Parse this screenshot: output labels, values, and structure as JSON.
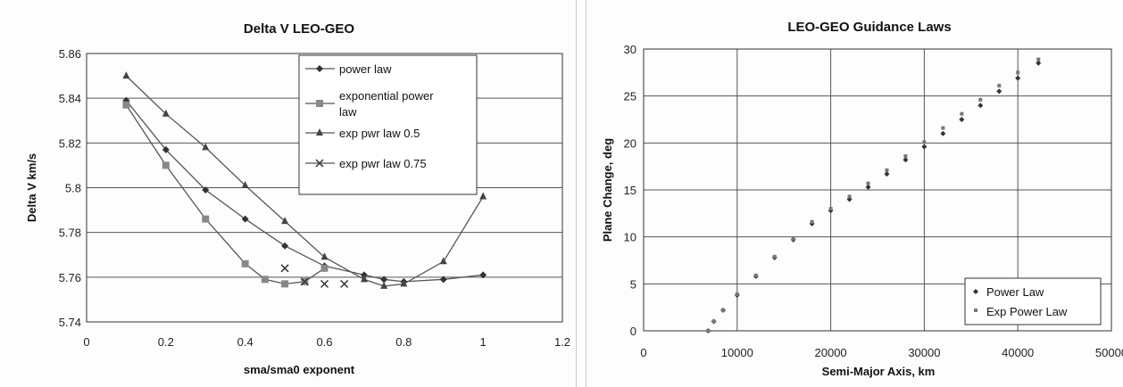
{
  "chart_data": [
    {
      "type": "line",
      "title": "Delta V LEO-GEO",
      "xlabel": "sma/sma0 exponent",
      "ylabel": "Delta V km/s",
      "xlim": [
        0,
        1.2
      ],
      "ylim": [
        5.74,
        5.86
      ],
      "xticks": [
        "0",
        "0.2",
        "0.4",
        "0.6",
        "0.8",
        "1",
        "1.2"
      ],
      "yticks": [
        "5.74",
        "5.76",
        "5.78",
        "5.8",
        "5.82",
        "5.84",
        "5.86"
      ],
      "grid": "horizontal",
      "legend": "top-center",
      "series": [
        {
          "name": "power law",
          "marker": "diamond",
          "x": [
            0.1,
            0.2,
            0.3,
            0.4,
            0.5,
            0.6,
            0.7,
            0.75,
            0.8,
            0.9,
            1.0
          ],
          "y": [
            5.839,
            5.817,
            5.799,
            5.786,
            5.774,
            5.765,
            5.761,
            5.759,
            5.758,
            5.759,
            5.761
          ]
        },
        {
          "name": "exponential power law",
          "marker": "square",
          "x": [
            0.1,
            0.2,
            0.3,
            0.4,
            0.45,
            0.5,
            0.55,
            0.6
          ],
          "y": [
            5.837,
            5.81,
            5.786,
            5.766,
            5.759,
            5.757,
            5.758,
            5.764
          ]
        },
        {
          "name": "exp pwr law 0.5",
          "marker": "triangle",
          "x": [
            0.1,
            0.2,
            0.3,
            0.4,
            0.5,
            0.6,
            0.7,
            0.75,
            0.8,
            0.9,
            1.0
          ],
          "y": [
            5.85,
            5.833,
            5.818,
            5.801,
            5.785,
            5.769,
            5.759,
            5.756,
            5.757,
            5.767,
            5.796
          ]
        },
        {
          "name": "exp pwr law 0.75",
          "marker": "x",
          "x": [
            0.5,
            0.55,
            0.6,
            0.65
          ],
          "y": [
            5.764,
            5.758,
            5.757,
            5.757
          ]
        }
      ]
    },
    {
      "type": "scatter",
      "title": "LEO-GEO Guidance Laws",
      "xlabel": "Semi-Major Axis, km",
      "ylabel": "Plane Change, deg",
      "xlim": [
        0,
        50000
      ],
      "ylim": [
        0,
        30
      ],
      "xticks": [
        "0",
        "10000",
        "20000",
        "30000",
        "40000",
        "50000"
      ],
      "yticks": [
        "0",
        "5",
        "10",
        "15",
        "20",
        "25",
        "30"
      ],
      "grid": "both",
      "legend": "bottom-right",
      "series": [
        {
          "name": "Power Law",
          "marker": "diamond",
          "x": [
            6900,
            7500,
            8500,
            10000,
            12000,
            14000,
            16000,
            18000,
            20000,
            22000,
            24000,
            26000,
            28000,
            30000,
            32000,
            34000,
            36000,
            38000,
            40000,
            42200
          ],
          "y": [
            0,
            1.0,
            2.2,
            3.8,
            5.8,
            7.8,
            9.7,
            11.4,
            12.8,
            14.0,
            15.3,
            16.7,
            18.2,
            19.6,
            21.0,
            22.5,
            24.0,
            25.5,
            26.9,
            28.5
          ]
        },
        {
          "name": "Exp Power Law",
          "marker": "square",
          "x": [
            6900,
            7500,
            8500,
            10000,
            12000,
            14000,
            16000,
            18000,
            20000,
            22000,
            24000,
            26000,
            28000,
            30000,
            32000,
            34000,
            36000,
            38000,
            40000,
            42200
          ],
          "y": [
            0,
            1.0,
            2.2,
            3.9,
            5.9,
            7.9,
            9.8,
            11.6,
            13.0,
            14.3,
            15.7,
            17.1,
            18.6,
            20.1,
            21.6,
            23.1,
            24.6,
            26.1,
            27.5,
            28.9
          ]
        }
      ]
    }
  ]
}
